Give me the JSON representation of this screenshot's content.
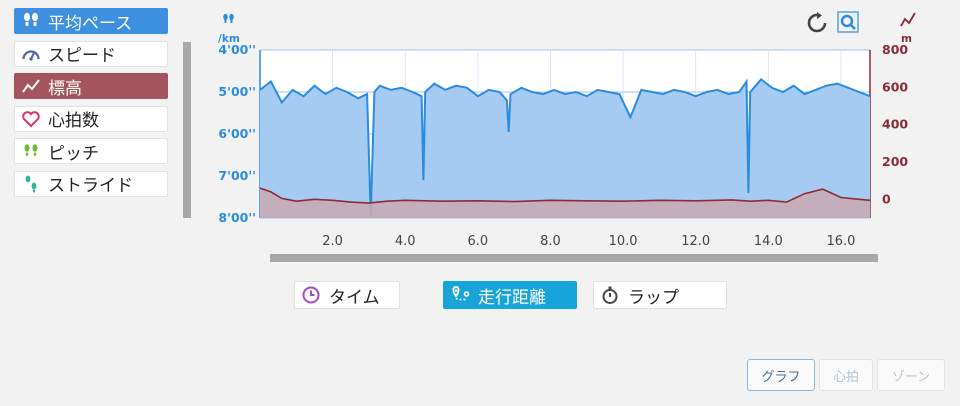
{
  "metrics": [
    {
      "label": "平均ペース",
      "icon": "footprints-icon",
      "state": "active",
      "color": "#3d8fe0"
    },
    {
      "label": "スピード",
      "icon": "speedometer-icon",
      "state": "normal"
    },
    {
      "label": "標高",
      "icon": "elevation-icon",
      "state": "active",
      "color": "#a3545c"
    },
    {
      "label": "心拍数",
      "icon": "heart-icon",
      "state": "normal"
    },
    {
      "label": "ピッチ",
      "icon": "steps-icon",
      "state": "normal"
    },
    {
      "label": "ストライド",
      "icon": "stride-icon",
      "state": "normal"
    }
  ],
  "x_modes": [
    {
      "label": "タイム",
      "icon": "clock-icon",
      "selected": false
    },
    {
      "label": "走行距離",
      "icon": "distance-map-icon",
      "selected": true
    },
    {
      "label": "ラップ",
      "icon": "stopwatch-icon",
      "selected": false
    }
  ],
  "view_buttons": [
    {
      "label": "グラフ",
      "enabled": true,
      "selected": true
    },
    {
      "label": "心拍",
      "enabled": false
    },
    {
      "label": "ゾーン",
      "enabled": false
    }
  ],
  "toolbar": {
    "reset_icon": "reset-icon",
    "zoom_icon": "zoom-icon"
  },
  "colors": {
    "pace": "#2a8ce0",
    "pace_fill": "#a6cbf3",
    "elevation": "#8c2b36",
    "elevation_fill": "#c9a9b1"
  },
  "chart_data": {
    "type": "area",
    "left_unit": "/km",
    "right_unit": "m",
    "left_axis": {
      "ticks": [
        "4'00''",
        "5'00''",
        "6'00''",
        "7'00''",
        "8'00''"
      ],
      "values_min": [
        4,
        5,
        6,
        7,
        8
      ],
      "inverted": true,
      "range": [
        4,
        8
      ]
    },
    "right_axis": {
      "ticks": [
        "800",
        "600",
        "400",
        "200",
        "0"
      ],
      "range": [
        -100,
        800
      ]
    },
    "x_axis": {
      "ticks": [
        "2.0",
        "4.0",
        "6.0",
        "8.0",
        "10.0",
        "12.0",
        "14.0",
        "16.0"
      ],
      "tick_values": [
        2,
        4,
        6,
        8,
        10,
        12,
        14,
        16
      ],
      "range": [
        0,
        16.8
      ],
      "unit": "km"
    },
    "grid": true,
    "series": [
      {
        "name": "平均ペース",
        "axis": "left",
        "x": [
          0,
          0.3,
          0.6,
          0.9,
          1.2,
          1.5,
          1.8,
          2.1,
          2.4,
          2.7,
          2.95,
          3.05,
          3.15,
          3.3,
          3.6,
          3.9,
          4.2,
          4.45,
          4.5,
          4.55,
          4.8,
          5.1,
          5.4,
          5.7,
          6.0,
          6.3,
          6.6,
          6.8,
          6.85,
          6.9,
          7.2,
          7.5,
          7.8,
          8.1,
          8.4,
          8.7,
          9.0,
          9.3,
          9.6,
          9.9,
          10.2,
          10.5,
          10.8,
          11.1,
          11.4,
          11.7,
          12.0,
          12.3,
          12.6,
          12.9,
          13.2,
          13.4,
          13.45,
          13.5,
          13.8,
          14.1,
          14.4,
          14.7,
          15.0,
          15.3,
          15.6,
          15.9,
          16.2,
          16.5,
          16.8
        ],
        "pace_min_per_km": [
          4.95,
          4.75,
          5.25,
          4.95,
          5.1,
          4.85,
          5.05,
          4.9,
          5.0,
          5.15,
          5.05,
          7.95,
          5.0,
          4.85,
          4.95,
          4.9,
          5.0,
          5.1,
          7.1,
          5.0,
          4.8,
          4.95,
          4.85,
          4.9,
          5.1,
          4.95,
          5.0,
          5.2,
          5.95,
          5.05,
          4.9,
          5.0,
          5.05,
          4.95,
          5.05,
          5.0,
          5.1,
          4.95,
          5.0,
          5.05,
          5.6,
          4.95,
          5.0,
          5.05,
          4.95,
          5.0,
          5.1,
          5.0,
          4.95,
          5.05,
          5.0,
          4.75,
          7.4,
          5.0,
          4.7,
          4.9,
          5.0,
          4.85,
          5.05,
          4.95,
          4.85,
          4.8,
          4.9,
          5.0,
          5.1
        ]
      },
      {
        "name": "標高",
        "axis": "right",
        "x": [
          0,
          0.3,
          0.6,
          1.0,
          1.5,
          2.0,
          2.5,
          3.0,
          3.5,
          4.0,
          5.0,
          6.0,
          7.0,
          8.0,
          9.0,
          10.0,
          11.0,
          12.0,
          13.0,
          13.5,
          14.0,
          14.5,
          15.0,
          15.5,
          16.0,
          16.5,
          16.8
        ],
        "elevation_m": [
          60,
          40,
          5,
          -10,
          0,
          -5,
          -15,
          -20,
          -10,
          -5,
          -10,
          -8,
          -12,
          -5,
          -8,
          -10,
          -5,
          -8,
          -3,
          -10,
          -5,
          -15,
          30,
          55,
          10,
          0,
          -5
        ]
      }
    ]
  }
}
